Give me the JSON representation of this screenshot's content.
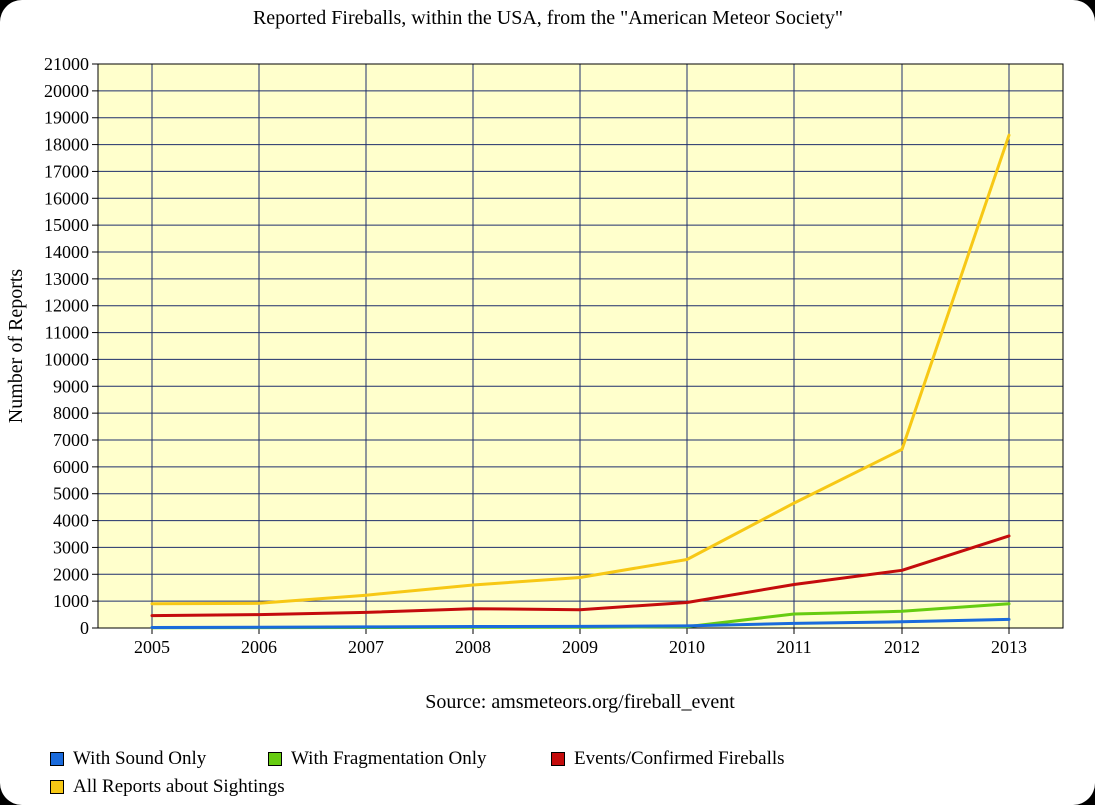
{
  "colors": {
    "background": "#ffffff",
    "plot_background": "#ffffcc",
    "grid": "#1f2f6b"
  },
  "chart_data": {
    "type": "line",
    "title": "Reported Fireballs, within the USA, from the \"American Meteor Society\"",
    "xlabel": "Source: amsmeteors.org/fireball_event",
    "ylabel": "Number of Reports",
    "categories": [
      "2005",
      "2006",
      "2007",
      "2008",
      "2009",
      "2010",
      "2011",
      "2012",
      "2013"
    ],
    "ylim": [
      0,
      21000
    ],
    "yticks": [
      "0",
      "1000",
      "2000",
      "3000",
      "4000",
      "5000",
      "6000",
      "7000",
      "8000",
      "9000",
      "10000",
      "11000",
      "12000",
      "13000",
      "14000",
      "15000",
      "16000",
      "17000",
      "18000",
      "19000",
      "20000",
      "21000"
    ],
    "grid": true,
    "legend_position": "bottom",
    "series": [
      {
        "name": "With Sound Only",
        "color": "#1a6bdc",
        "values": [
          20,
          30,
          40,
          55,
          60,
          80,
          170,
          230,
          320
        ]
      },
      {
        "name": "With Fragmentation Only",
        "color": "#66cc11",
        "values": [
          10,
          15,
          20,
          25,
          30,
          50,
          520,
          620,
          900
        ]
      },
      {
        "name": "Events/Confirmed Fireballs",
        "color": "#c40c0c",
        "values": [
          460,
          500,
          580,
          720,
          680,
          950,
          1620,
          2150,
          3430
        ]
      },
      {
        "name": "All Reports about Sightings",
        "color": "#f7c815",
        "values": [
          900,
          920,
          1220,
          1600,
          1880,
          2550,
          4650,
          6650,
          18350
        ]
      }
    ]
  }
}
